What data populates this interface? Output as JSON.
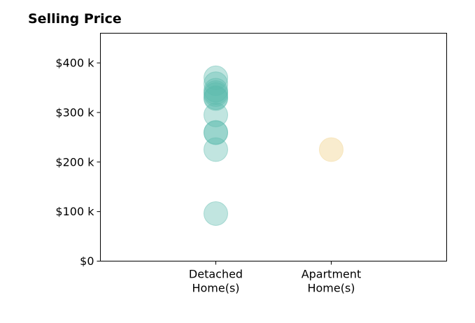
{
  "chart_data": {
    "type": "scatter",
    "title": "Selling Price",
    "xlabel": "",
    "ylabel": "",
    "categories": [
      "Detached\nHome(s)",
      "Apartment\nHome(s)"
    ],
    "ylim": [
      0,
      460000
    ],
    "xlim": [
      -1,
      2
    ],
    "y_ticks": [
      {
        "value": 0,
        "label": "$0"
      },
      {
        "value": 100000,
        "label": "$100 k"
      },
      {
        "value": 200000,
        "label": "$200 k"
      },
      {
        "value": 300000,
        "label": "$300 k"
      },
      {
        "value": 400000,
        "label": "$400 k"
      }
    ],
    "grid": false,
    "series": [
      {
        "category": "Detached\nHome(s)",
        "color": "#5dbbad",
        "values": [
          370000,
          358000,
          345000,
          340000,
          336000,
          330000,
          328000,
          295000,
          260000,
          259000,
          225000,
          96000
        ]
      },
      {
        "category": "Apartment\nHome(s)",
        "color": "#f5dfae",
        "values": [
          225000
        ]
      }
    ]
  }
}
